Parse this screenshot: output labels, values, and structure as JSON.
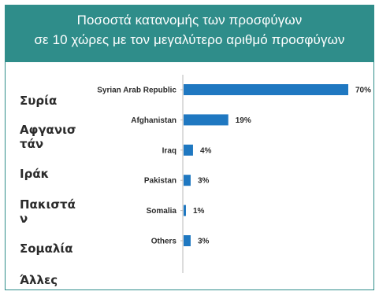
{
  "header": {
    "title_line1": "Ποσοστά κατανομής των προσφύγων",
    "title_line2": "σε 10 χώρες με τον μεγαλύτερο αριθμό προσφύγων"
  },
  "greek_labels": [
    "Συρία",
    "Αφγανισ\nτάν",
    "Ιράκ",
    "Πακιστά\nν",
    "Σομαλία",
    "Άλλες"
  ],
  "colors": {
    "bar": "#1f78c1",
    "axis": "#b9b9b9",
    "header_bg": "#2f8d8a"
  },
  "chart_data": {
    "type": "bar",
    "orientation": "horizontal",
    "categories": [
      "Syrian Arab Republic",
      "Afghanistan",
      "Iraq",
      "Pakistan",
      "Somalia",
      "Others"
    ],
    "values": [
      70,
      19,
      4,
      3,
      1,
      3
    ],
    "value_labels": [
      "70%",
      "19%",
      "4%",
      "3%",
      "1%",
      "3%"
    ],
    "title": "",
    "xlabel": "",
    "ylabel": "",
    "xlim": [
      0,
      70
    ],
    "grid": false
  }
}
